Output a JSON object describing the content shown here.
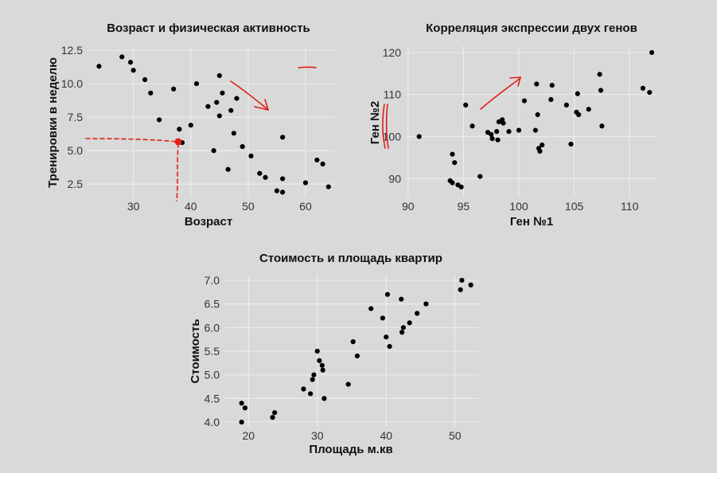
{
  "colors": {
    "background": "#d9d9d9",
    "panel": "#d9d9d9",
    "grid": "#ececec",
    "point": "#000000",
    "annotation": "#e0201b"
  },
  "chart_data": [
    {
      "type": "scatter",
      "title": "Возраст и физическая активность",
      "xlabel": "Возраст",
      "ylabel": "Тренировки в неделю",
      "xlim": [
        22,
        65
      ],
      "ylim": [
        1.5,
        12.8
      ],
      "xticks": [
        30,
        40,
        50,
        60
      ],
      "yticks": [
        2.5,
        5.0,
        7.5,
        10.0,
        12.5
      ],
      "ytick_labels": [
        "2.5",
        "5.0",
        "7.5",
        "10.0",
        "12.5"
      ],
      "grid": true,
      "x": [
        24,
        28,
        29.5,
        30,
        32,
        33,
        34.5,
        37,
        38,
        38.5,
        40,
        41,
        43,
        44,
        44.5,
        45,
        45,
        45.5,
        46.5,
        47,
        47.5,
        48,
        49,
        50.5,
        52,
        53,
        55,
        56,
        56,
        56,
        60,
        62,
        63,
        64
      ],
      "y": [
        11.3,
        12.0,
        11.6,
        11.0,
        10.3,
        9.3,
        7.3,
        9.6,
        6.6,
        5.6,
        6.9,
        10.0,
        8.3,
        5.0,
        8.6,
        10.6,
        7.6,
        9.3,
        3.6,
        8.0,
        6.3,
        8.9,
        5.3,
        4.6,
        3.3,
        3.0,
        2.0,
        2.9,
        6.0,
        1.9,
        2.6,
        4.3,
        4.0,
        2.3
      ]
    },
    {
      "type": "scatter",
      "title": "Корреляция экспрессии двух генов",
      "xlabel": "Ген №1",
      "ylabel": "Ген №2",
      "xlim": [
        89.8,
        112.5
      ],
      "ylim": [
        85.5,
        121.5
      ],
      "xticks": [
        90,
        95,
        100,
        105,
        110
      ],
      "yticks": [
        90,
        100,
        110,
        120
      ],
      "grid": true,
      "x": [
        91,
        93.8,
        94,
        94,
        94.2,
        94.5,
        94.8,
        95.2,
        95.8,
        96.5,
        97.2,
        97.5,
        97.6,
        98,
        98.1,
        98.2,
        98.5,
        98.6,
        99.1,
        100,
        100.5,
        101.5,
        101.6,
        101.7,
        101.8,
        101.9,
        102.1,
        102.9,
        103,
        104.3,
        104.7,
        105.2,
        105.3,
        105.4,
        106.3,
        107.3,
        107.4,
        107.5,
        111.2,
        111.8,
        112
      ],
      "y": [
        100,
        89.5,
        89,
        95.8,
        93.8,
        88.5,
        88,
        107.5,
        102.5,
        90.5,
        101,
        100.5,
        99.5,
        101.2,
        99.2,
        103.5,
        104,
        103.2,
        101.2,
        101.5,
        108.5,
        101.5,
        112.5,
        105.2,
        97.2,
        96.5,
        98,
        108.8,
        112.2,
        107.5,
        98.2,
        105.8,
        110.2,
        105.2,
        106.5,
        114.8,
        111,
        102.5,
        111.5,
        110.5,
        120
      ]
    },
    {
      "type": "scatter",
      "title": "Стоимость и площадь квартир",
      "xlabel": "Площадь м.кв",
      "ylabel": "Стоимость",
      "xlim": [
        16.5,
        53.5
      ],
      "ylim": [
        3.9,
        7.1
      ],
      "xticks": [
        20,
        30,
        40,
        50
      ],
      "yticks": [
        4.0,
        4.5,
        5.0,
        5.5,
        6.0,
        6.5,
        7.0
      ],
      "ytick_labels": [
        "4.0",
        "4.5",
        "5.0",
        "5.5",
        "6.0",
        "6.5",
        "7.0"
      ],
      "grid": true,
      "x": [
        19,
        19,
        19.5,
        23.5,
        23.8,
        28,
        29,
        29.3,
        29.5,
        30,
        30.3,
        30.7,
        30.8,
        31,
        34.5,
        35.2,
        35.8,
        37.8,
        39.5,
        40,
        40.2,
        40.5,
        42.2,
        42.3,
        42.5,
        43.4,
        44.5,
        45.8,
        50.8,
        51,
        52.3
      ],
      "y": [
        4.0,
        4.4,
        4.3,
        4.1,
        4.2,
        4.7,
        4.6,
        4.9,
        5.0,
        5.5,
        5.3,
        5.2,
        5.1,
        4.5,
        4.8,
        5.7,
        5.4,
        6.4,
        6.2,
        5.8,
        6.7,
        5.6,
        6.6,
        5.9,
        6.0,
        6.1,
        6.3,
        6.5,
        6.8,
        7.0,
        6.9
      ]
    }
  ]
}
